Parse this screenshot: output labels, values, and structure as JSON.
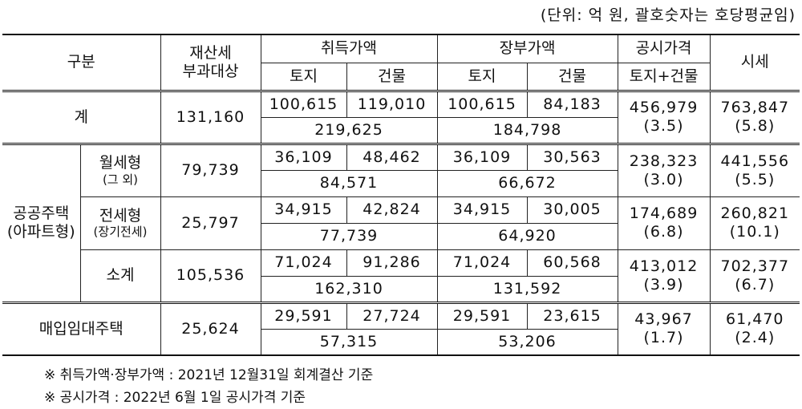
{
  "unit_note": "(단위: 억 원, 괄호숫자는 호당평균임)",
  "table": {
    "header": {
      "category": "구분",
      "tax_base_1": "재산세",
      "tax_base_2": "부과대상",
      "acquisition": "취득가액",
      "book": "장부가액",
      "public_price": "공시가격",
      "market": "시세",
      "land": "토지",
      "building": "건물",
      "land_building": "토지+건물"
    },
    "total_row": {
      "label": "계",
      "tax_base": "131,160",
      "acq_land": "100,615",
      "acq_building": "119,010",
      "acq_total": "219,625",
      "book_land": "100,615",
      "book_building": "84,183",
      "book_total": "184,798",
      "public_price": "456,979",
      "public_avg": "(3.5)",
      "market": "763,847",
      "market_avg": "(5.8)"
    },
    "public_housing": {
      "label": "공공주택",
      "note": "(아파트형)",
      "rows": [
        {
          "label": "월세형",
          "note": "(그 외)",
          "tax_base": "79,739",
          "acq_land": "36,109",
          "acq_building": "48,462",
          "acq_total": "84,571",
          "book_land": "36,109",
          "book_building": "30,563",
          "book_total": "66,672",
          "public_price": "238,323",
          "public_avg": "(3.0)",
          "market": "441,556",
          "market_avg": "(5.5)"
        },
        {
          "label": "전세형",
          "note": "(장기전세)",
          "tax_base": "25,797",
          "acq_land": "34,915",
          "acq_building": "42,824",
          "acq_total": "77,739",
          "book_land": "34,915",
          "book_building": "30,005",
          "book_total": "64,920",
          "public_price": "174,689",
          "public_avg": "(6.8)",
          "market": "260,821",
          "market_avg": "(10.1)"
        },
        {
          "label": "소계",
          "tax_base": "105,536",
          "acq_land": "71,024",
          "acq_building": "91,286",
          "acq_total": "162,310",
          "book_land": "71,024",
          "book_building": "60,568",
          "book_total": "131,592",
          "public_price": "413,012",
          "public_avg": "(3.9)",
          "market": "702,377",
          "market_avg": "(6.7)"
        }
      ]
    },
    "purchase_row": {
      "label": "매입임대주택",
      "tax_base": "25,624",
      "acq_land": "29,591",
      "acq_building": "27,724",
      "acq_total": "57,315",
      "book_land": "29,591",
      "book_building": "23,615",
      "book_total": "53,206",
      "public_price": "43,967",
      "public_avg": "(1.7)",
      "market": "61,470",
      "market_avg": "(2.4)"
    }
  },
  "footnotes": [
    "※ 취득가액·장부가액 : 2021년 12월31일 회계결산 기준",
    "※ 공시가격 : 2022년 6월 1일 공시가격 기준"
  ]
}
